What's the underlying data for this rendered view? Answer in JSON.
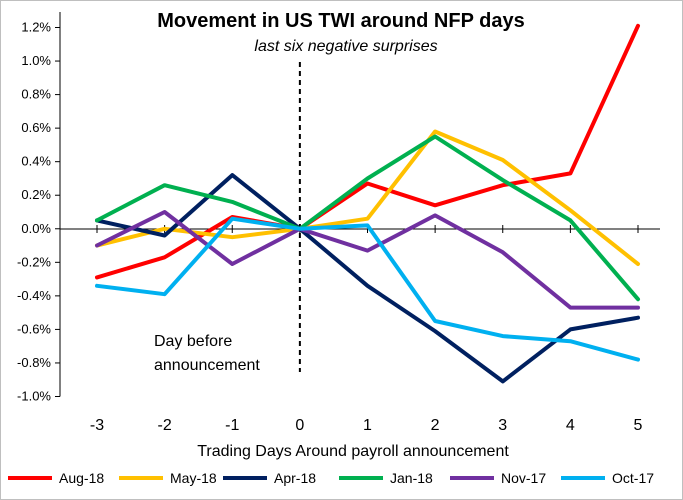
{
  "chart_data": {
    "type": "line",
    "title": "Movement in US TWI around NFP days",
    "subtitle": "last six negative surprises",
    "xlabel": "Trading Days Around payroll announcement",
    "ylabel": "",
    "x": [
      -3,
      -2,
      -1,
      0,
      1,
      2,
      3,
      4,
      5
    ],
    "x_tick_labels": [
      "-3",
      "-2",
      "-1",
      "0",
      "1",
      "2",
      "3",
      "4",
      "5"
    ],
    "ylim": [
      -1.0,
      1.3
    ],
    "y_ticks": [
      -1.0,
      -0.8,
      -0.6,
      -0.4,
      -0.2,
      0.0,
      0.2,
      0.4,
      0.6,
      0.8,
      1.0,
      1.2
    ],
    "y_tick_labels": [
      "-1.0%",
      "-0.8%",
      "-0.6%",
      "-0.4%",
      "-0.2%",
      "0.0%",
      "0.2%",
      "0.4%",
      "0.6%",
      "0.8%",
      "1.0%",
      "1.2%"
    ],
    "grid": false,
    "legend_position": "bottom",
    "annotation": {
      "text_line1": "Day before",
      "text_line2": "announcement",
      "x": 0
    },
    "series": [
      {
        "name": "Aug-18",
        "color": "#ff0000",
        "values": [
          -0.29,
          -0.17,
          0.07,
          0.0,
          0.27,
          0.14,
          0.26,
          0.33,
          1.21
        ]
      },
      {
        "name": "May-18",
        "color": "#ffc000",
        "values": [
          -0.1,
          0.0,
          -0.05,
          0.0,
          0.06,
          0.58,
          0.41,
          0.11,
          -0.21
        ]
      },
      {
        "name": "Apr-18",
        "color": "#002060",
        "values": [
          0.05,
          -0.04,
          0.32,
          0.0,
          -0.34,
          -0.61,
          -0.91,
          -0.6,
          -0.53
        ]
      },
      {
        "name": "Jan-18",
        "color": "#00b050",
        "values": [
          0.05,
          0.26,
          0.16,
          0.0,
          0.3,
          0.55,
          0.29,
          0.05,
          -0.42
        ]
      },
      {
        "name": "Nov-17",
        "color": "#7030a0",
        "values": [
          -0.1,
          0.1,
          -0.21,
          0.0,
          -0.13,
          0.08,
          -0.14,
          -0.47,
          -0.47
        ]
      },
      {
        "name": "Oct-17",
        "color": "#00b0f0",
        "values": [
          -0.34,
          -0.39,
          0.06,
          0.0,
          0.02,
          -0.55,
          -0.64,
          -0.67,
          -0.78
        ]
      }
    ]
  }
}
